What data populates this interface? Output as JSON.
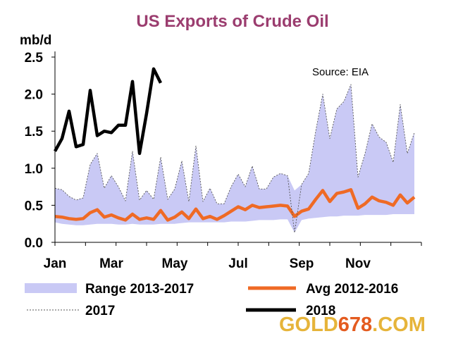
{
  "chart_data": {
    "type": "line",
    "title": "US Exports of Crude Oil",
    "ylabel": "mb/d",
    "source": "Source: EIA",
    "ylim": [
      0,
      2.5
    ],
    "yticks": [
      {
        "value": 0.0,
        "label": "0.0"
      },
      {
        "value": 0.5,
        "label": "0.5"
      },
      {
        "value": 1.0,
        "label": "1.0"
      },
      {
        "value": 1.5,
        "label": "1.5"
      },
      {
        "value": 2.0,
        "label": "2.0"
      },
      {
        "value": 2.5,
        "label": "2.5"
      }
    ],
    "xticks": [
      {
        "week": 1,
        "label": "Jan"
      },
      {
        "week": 9,
        "label": "Mar"
      },
      {
        "week": 18,
        "label": "May"
      },
      {
        "week": 27,
        "label": "Jul"
      },
      {
        "week": 36,
        "label": "Sep"
      },
      {
        "week": 44,
        "label": "Nov"
      }
    ],
    "x_units": "week of year",
    "xlim": [
      1,
      53
    ],
    "grid": false,
    "legend_position": "bottom",
    "series": [
      {
        "name": "Range 2013-2017",
        "kind": "range",
        "color": "#c9c9f5",
        "upper": [
          0.73,
          0.71,
          0.62,
          0.57,
          0.6,
          1.05,
          1.2,
          0.73,
          0.9,
          0.75,
          0.56,
          1.23,
          0.57,
          0.7,
          0.58,
          1.15,
          0.58,
          0.72,
          1.1,
          0.55,
          1.3,
          0.55,
          0.73,
          0.52,
          0.52,
          0.75,
          0.92,
          0.75,
          1.03,
          0.72,
          0.72,
          0.88,
          0.93,
          0.9,
          0.7,
          0.78,
          0.93,
          1.5,
          2.0,
          1.4,
          1.8,
          1.9,
          2.13,
          0.88,
          1.2,
          1.6,
          1.42,
          1.35,
          1.08,
          1.86,
          1.2,
          1.48
        ],
        "lower": [
          0.27,
          0.25,
          0.24,
          0.23,
          0.23,
          0.24,
          0.25,
          0.25,
          0.25,
          0.24,
          0.24,
          0.25,
          0.24,
          0.24,
          0.24,
          0.25,
          0.25,
          0.25,
          0.26,
          0.27,
          0.27,
          0.27,
          0.27,
          0.27,
          0.27,
          0.28,
          0.28,
          0.28,
          0.29,
          0.3,
          0.3,
          0.3,
          0.31,
          0.31,
          0.13,
          0.3,
          0.32,
          0.33,
          0.34,
          0.35,
          0.35,
          0.36,
          0.36,
          0.36,
          0.37,
          0.37,
          0.37,
          0.37,
          0.38,
          0.38,
          0.38,
          0.38
        ]
      },
      {
        "name": "Avg 2012-2016",
        "kind": "line",
        "color": "#ef6a25",
        "values": [
          0.35,
          0.34,
          0.32,
          0.31,
          0.32,
          0.4,
          0.44,
          0.34,
          0.37,
          0.33,
          0.3,
          0.38,
          0.31,
          0.33,
          0.31,
          0.43,
          0.3,
          0.34,
          0.41,
          0.32,
          0.45,
          0.32,
          0.35,
          0.31,
          0.36,
          0.42,
          0.48,
          0.44,
          0.5,
          0.47,
          0.48,
          0.49,
          0.5,
          0.49,
          0.35,
          0.42,
          0.45,
          0.58,
          0.7,
          0.55,
          0.66,
          0.68,
          0.71,
          0.46,
          0.52,
          0.61,
          0.56,
          0.54,
          0.5,
          0.64,
          0.53,
          0.61
        ]
      },
      {
        "name": "2017",
        "kind": "line",
        "color": "#555555",
        "dashed": true,
        "values": [
          0.73,
          0.71,
          0.62,
          0.57,
          0.6,
          1.05,
          1.2,
          0.73,
          0.9,
          0.75,
          0.56,
          1.23,
          0.57,
          0.7,
          0.58,
          1.15,
          0.58,
          0.72,
          1.1,
          0.55,
          1.3,
          0.55,
          0.73,
          0.52,
          0.52,
          0.75,
          0.92,
          0.75,
          1.03,
          0.72,
          0.72,
          0.88,
          0.93,
          0.9,
          0.13,
          0.78,
          0.93,
          1.5,
          2.0,
          1.4,
          1.8,
          1.9,
          2.13,
          0.88,
          1.2,
          1.6,
          1.42,
          1.35,
          1.08,
          1.86,
          1.2,
          1.48
        ]
      },
      {
        "name": "2018",
        "kind": "line",
        "color": "#000000",
        "values": [
          1.23,
          1.4,
          1.77,
          1.29,
          1.32,
          2.05,
          1.44,
          1.5,
          1.48,
          1.58,
          1.58,
          2.17,
          1.2,
          1.74,
          2.34,
          2.15
        ]
      }
    ]
  },
  "watermark": {
    "part1": "GOLD",
    "part2": "678",
    "part3": ".COM"
  }
}
